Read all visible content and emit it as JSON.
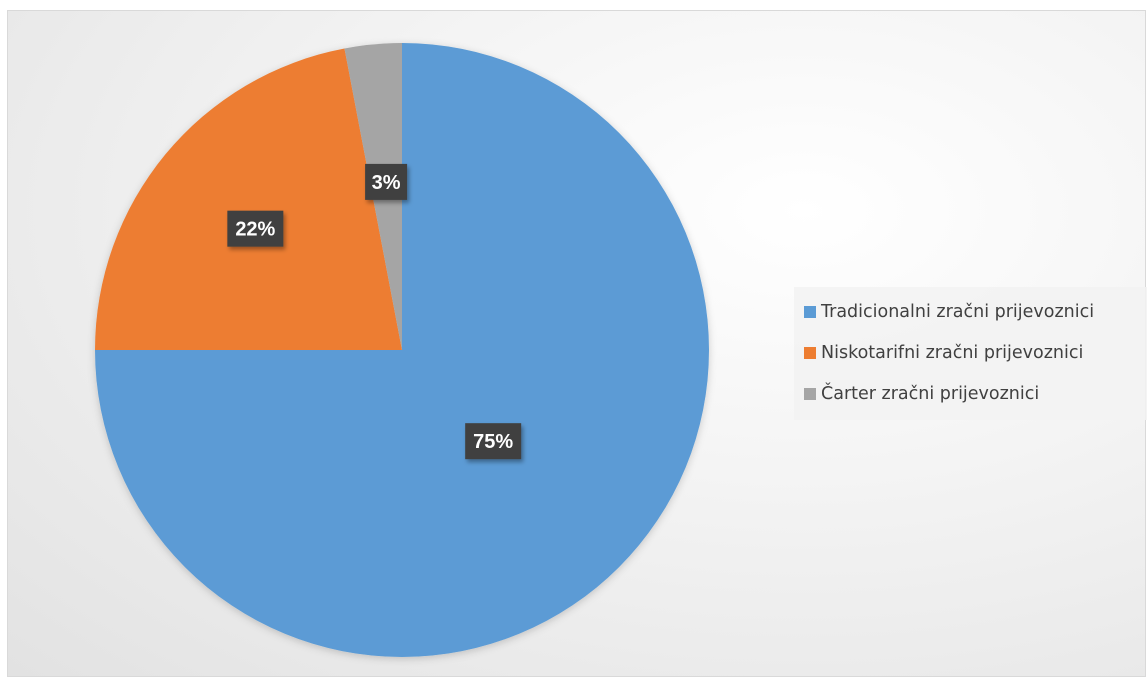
{
  "chart_data": {
    "type": "pie",
    "title": "",
    "categories": [
      "Tradicionalni zračni prijevoznici",
      "Niskotarifni zračni prijevoznici",
      "Čarter zračni prijevoznici"
    ],
    "values": [
      75,
      22,
      3
    ],
    "data_labels": [
      "75%",
      "22%",
      "3%"
    ],
    "colors": [
      "#5b9bd5",
      "#ed7d31",
      "#a5a5a5"
    ],
    "legend_position": "right",
    "start_angle": "12 o'clock, clockwise"
  },
  "legend": {
    "items": [
      {
        "label": "Tradicionalni zračni prijevoznici",
        "color": "#5b9bd5"
      },
      {
        "label": "Niskotarifni zračni prijevoznici",
        "color": "#ed7d31"
      },
      {
        "label": "Čarter zračni prijevoznici",
        "color": "#a5a5a5"
      }
    ]
  }
}
